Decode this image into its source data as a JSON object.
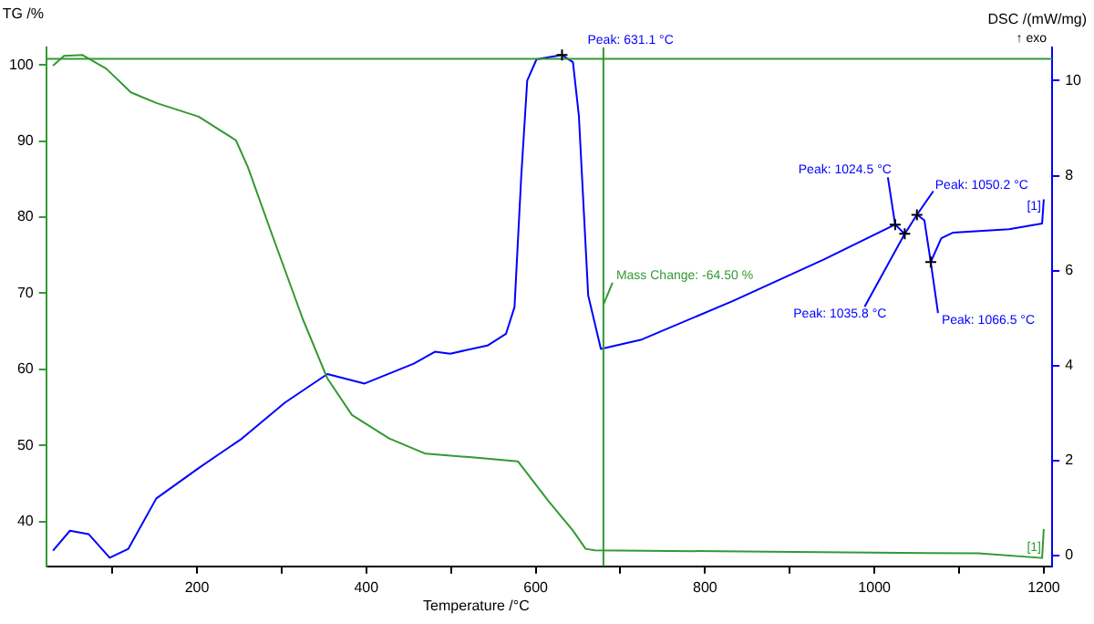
{
  "chart_data": {
    "type": "line",
    "xlabel": "Temperature /°C",
    "ylabel": "TG /%",
    "y2label": "DSC /(mW/mg)",
    "xlim": [
      22,
      1210
    ],
    "xticks": [
      {
        "value": 100,
        "label": null
      },
      200,
      {
        "value": 300,
        "label": null
      },
      400,
      {
        "value": 500,
        "label": null
      },
      600,
      {
        "value": 700,
        "label": null
      },
      800,
      {
        "value": 900,
        "label": null
      },
      1000,
      {
        "value": 1100,
        "label": null
      },
      1200
    ],
    "ylim": [
      34.1,
      102.3
    ],
    "yticks": [
      40,
      50,
      60,
      70,
      80,
      90,
      100
    ],
    "y2lim": [
      -0.23,
      10.7
    ],
    "y2ticks": [
      0,
      2,
      4,
      6,
      8,
      10
    ],
    "grid": false,
    "legend": false,
    "marker": "none",
    "line_style": "solid",
    "series": [
      {
        "type": "line",
        "color": "#339933",
        "axis": "y",
        "x": [
          30,
          43,
          65,
          93,
          122,
          152,
          202,
          246,
          260,
          289,
          325,
          354,
          383,
          427,
          470,
          528,
          579,
          615,
          644,
          659,
          670,
          905,
          1123,
          1198,
          1200
        ],
        "values": [
          99.9,
          101.2,
          101.3,
          99.5,
          96.4,
          95.0,
          93.2,
          90.1,
          86.6,
          77.6,
          66.6,
          58.8,
          54.0,
          50.9,
          48.9,
          48.4,
          47.9,
          42.7,
          38.8,
          36.4,
          36.2,
          36.0,
          35.8,
          35.2,
          39
        ]
      },
      {
        "type": "line",
        "color": "#0000ff",
        "axis": "y2",
        "x": [
          30,
          50,
          72,
          97,
          119,
          152,
          202,
          253,
          304,
          354,
          398,
          456,
          481,
          499,
          543,
          565,
          575,
          583,
          590,
          601,
          631.1,
          644,
          651,
          662,
          677,
          724,
          833,
          941,
          1024.5,
          1035.8,
          1050.2,
          1059,
          1066.5,
          1079,
          1093,
          1159,
          1198,
          1200
        ],
        "values": [
          0.1,
          0.52,
          0.45,
          -0.05,
          0.14,
          1.2,
          1.84,
          2.46,
          3.22,
          3.82,
          3.62,
          4.04,
          4.29,
          4.25,
          4.42,
          4.67,
          5.23,
          8.0,
          10.0,
          10.45,
          10.54,
          10.39,
          9.26,
          5.48,
          4.35,
          4.54,
          5.36,
          6.24,
          6.97,
          6.77,
          7.18,
          7.06,
          6.18,
          6.68,
          6.8,
          6.87,
          6.99,
          7.5
        ]
      }
    ],
    "ref_lines": [
      {
        "axis": "y",
        "value": 100.8,
        "color": "#339933"
      },
      {
        "axis": "x",
        "value": 680,
        "color": "#339933"
      }
    ],
    "annotations": [
      "↑ exo",
      {
        "text": "Peak: 631.1 °C",
        "x": 631.1,
        "y": 101.3
      },
      {
        "text": "Peak: 1024.5 °C",
        "x": 1024.5,
        "y": 79.0
      },
      {
        "text": "Peak: 1050.2 °C",
        "x": 1050.2,
        "y": 80.3
      },
      {
        "text": "Peak: 1035.8 °C",
        "x": 1035.8,
        "y": 77.8
      },
      {
        "text": "Peak: 1066.5 °C",
        "x": 1066.5,
        "y": 74.1
      },
      {
        "text": "Mass Change: -64.50 %",
        "x": 680,
        "y": 68.5
      },
      "[1]",
      "[1]"
    ]
  }
}
